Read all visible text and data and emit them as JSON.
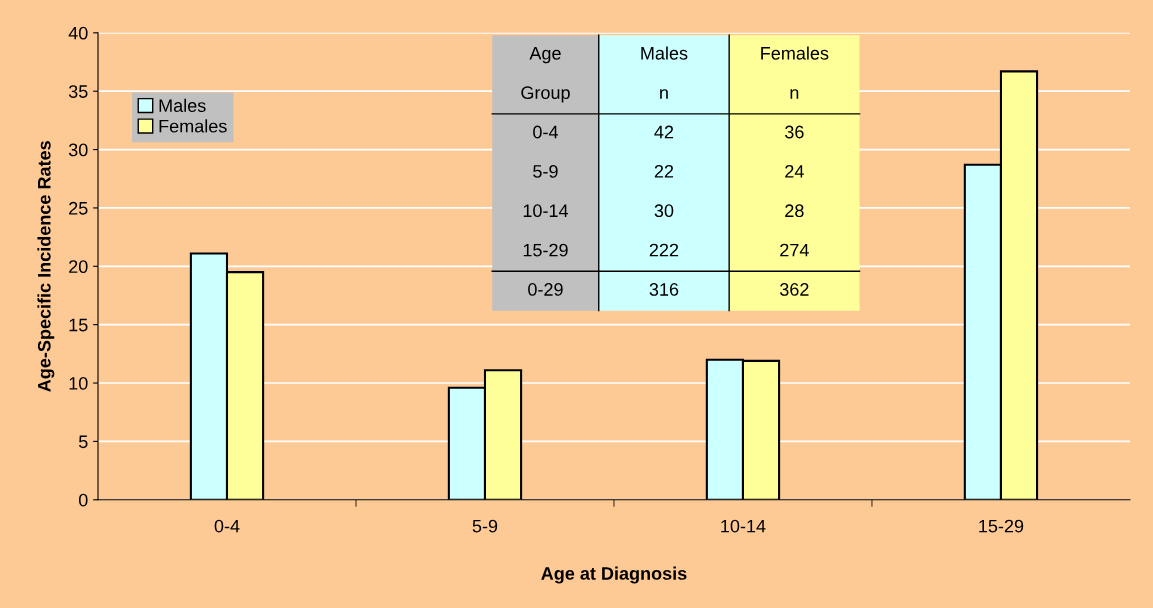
{
  "chart_data": {
    "type": "bar",
    "xlabel": "Age at Diagnosis",
    "ylabel": "Age-Specific Incidence Rates",
    "categories": [
      "0-4",
      "5-9",
      "10-14",
      "15-29"
    ],
    "series": [
      {
        "name": "Males",
        "color": "#ccffff",
        "values": [
          21.1,
          9.6,
          12.0,
          28.7
        ]
      },
      {
        "name": "Females",
        "color": "#ffff99",
        "values": [
          19.5,
          11.1,
          11.9,
          36.7
        ]
      }
    ],
    "ylim": [
      0,
      40
    ],
    "yticks": [
      0,
      5,
      10,
      15,
      20,
      25,
      30,
      35,
      40
    ],
    "grid": "y",
    "legend": "top left",
    "annotations": [
      "Age\nGroup",
      "Males\nn",
      "Females\nn",
      "0-4",
      "42",
      "36",
      "5-9",
      "22",
      "24",
      "10-14",
      "30",
      "28",
      "15-29",
      "222",
      "274",
      "0-29",
      "316",
      "362"
    ]
  }
}
